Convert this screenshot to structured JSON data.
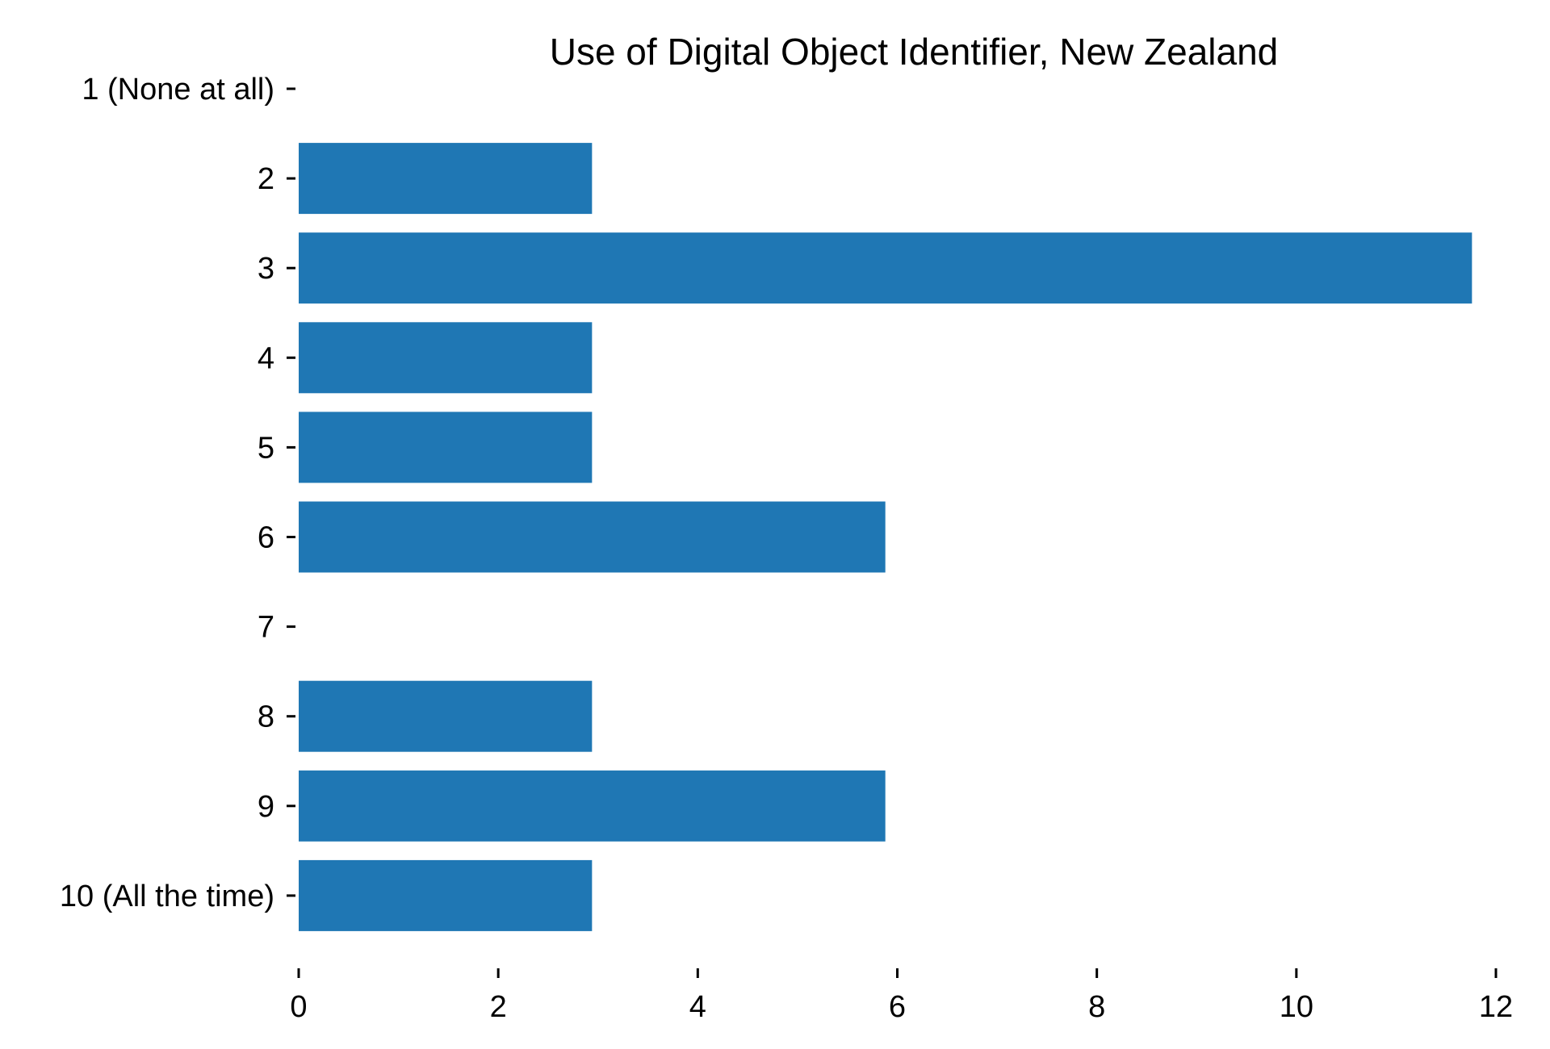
{
  "chart_data": {
    "type": "bar",
    "orientation": "horizontal",
    "title": "Use of Digital Object Identifier, New Zealand",
    "xlabel": "",
    "ylabel": "",
    "categories": [
      "1 (None at all)",
      "2",
      "3",
      "4",
      "5",
      "6",
      "7",
      "8",
      "9",
      "10 (All the time)"
    ],
    "values": [
      0,
      2.94,
      11.76,
      2.94,
      2.94,
      5.88,
      0,
      2.94,
      5.88,
      2.94
    ],
    "xlim": [
      0,
      12
    ],
    "xticks": [
      "0",
      "2",
      "4",
      "6",
      "8",
      "10",
      "12"
    ],
    "grid": false,
    "legend": "none",
    "bar_color": "#1f77b4"
  }
}
